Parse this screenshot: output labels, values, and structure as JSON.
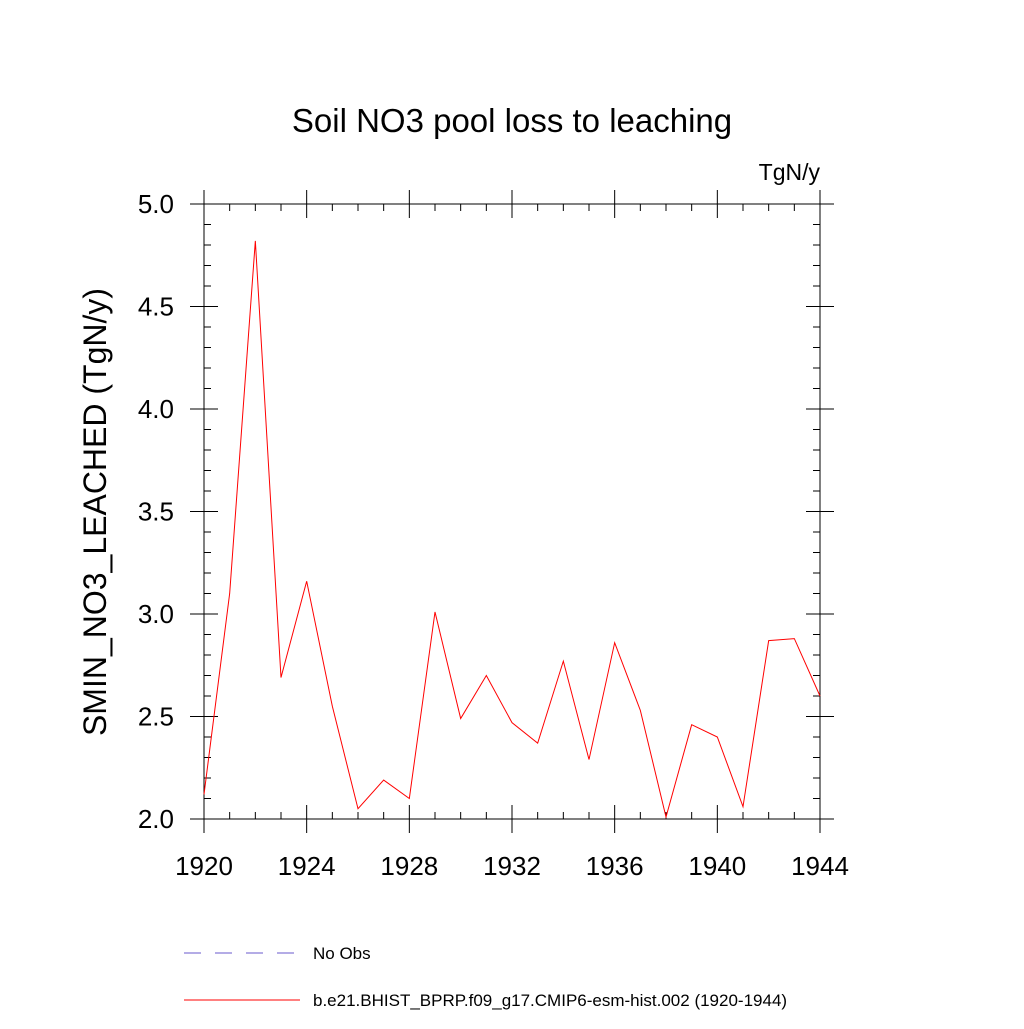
{
  "chart_data": {
    "type": "line",
    "title": "Soil NO3 pool loss to leaching",
    "units": "TgN/y",
    "ylabel": "SMIN_NO3_LEACHED  (TgN/y)",
    "xlabel": "",
    "xlim": [
      1920,
      1944
    ],
    "ylim": [
      2.0,
      5.0
    ],
    "x_ticks": [
      1920,
      1924,
      1928,
      1932,
      1936,
      1940,
      1944
    ],
    "x_tick_labels": [
      "1920",
      "1924",
      "1928",
      "1932",
      "1936",
      "1940",
      "1944"
    ],
    "y_ticks": [
      2.0,
      2.5,
      3.0,
      3.5,
      4.0,
      4.5,
      5.0
    ],
    "y_tick_labels": [
      "2.0",
      "2.5",
      "3.0",
      "3.5",
      "4.0",
      "4.5",
      "5.0"
    ],
    "grid": false,
    "legend_placement": "bottom",
    "series": [
      {
        "name": "No Obs",
        "color": "#6a5acd",
        "dash": "dashed",
        "values": []
      },
      {
        "name": "b.e21.BHIST_BPRP.f09_g17.CMIP6-esm-hist.002 (1920-1944)",
        "color": "#ff0000",
        "dash": "solid",
        "x": [
          1920,
          1921,
          1922,
          1923,
          1924,
          1925,
          1926,
          1927,
          1928,
          1929,
          1930,
          1931,
          1932,
          1933,
          1934,
          1935,
          1936,
          1937,
          1938,
          1939,
          1940,
          1941,
          1942,
          1943,
          1944
        ],
        "values": [
          2.12,
          3.1,
          4.82,
          2.69,
          3.16,
          2.55,
          2.05,
          2.19,
          2.1,
          3.01,
          2.49,
          2.7,
          2.47,
          2.37,
          2.77,
          2.29,
          2.86,
          2.53,
          2.01,
          2.46,
          2.4,
          2.06,
          2.87,
          2.88,
          2.6
        ]
      }
    ]
  }
}
